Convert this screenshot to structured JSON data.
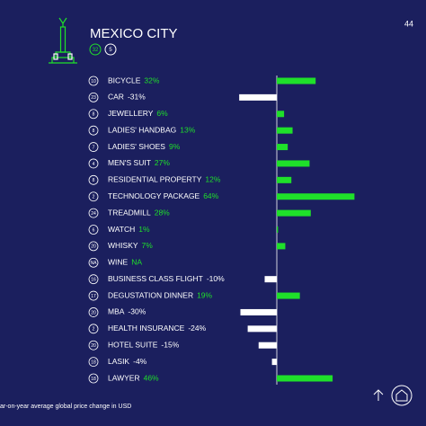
{
  "page_number": "44",
  "chart_data": {
    "type": "bar",
    "title": "MEXICO CITY",
    "badges": [
      32,
      5
    ],
    "categories": [
      "BICYCLE",
      "CAR",
      "JEWELLERY",
      "LADIES' HANDBAG",
      "LADIES' SHOES",
      "MEN'S SUIT",
      "RESIDENTIAL PROPERTY",
      "TECHNOLOGY PACKAGE",
      "TREADMILL",
      "WATCH",
      "WHISKY",
      "WINE",
      "BUSINESS CLASS FLIGHT",
      "DEGUSTATION DINNER",
      "MBA",
      "HEALTH INSURANCE",
      "HOTEL SUITE",
      "LASIK",
      "LAWYER"
    ],
    "ranks": [
      10,
      23,
      8,
      8,
      7,
      4,
      8,
      2,
      24,
      6,
      20,
      "NA",
      16,
      17,
      20,
      2,
      20,
      18,
      18
    ],
    "values": [
      32,
      -31,
      6,
      13,
      9,
      27,
      12,
      64,
      28,
      1,
      7,
      null,
      -10,
      19,
      -30,
      -24,
      -15,
      -4,
      46
    ],
    "value_labels": [
      "32%",
      "-31%",
      "6%",
      "13%",
      "9%",
      "27%",
      "12%",
      "64%",
      "28%",
      "1%",
      "7%",
      "NA",
      "-10%",
      "19%",
      "-30%",
      "-24%",
      "-15%",
      "-4%",
      "46%"
    ],
    "positive_color": "#1fe02a",
    "negative_color": "#ffffff",
    "note": "ar-on-year average global price change in USD"
  }
}
